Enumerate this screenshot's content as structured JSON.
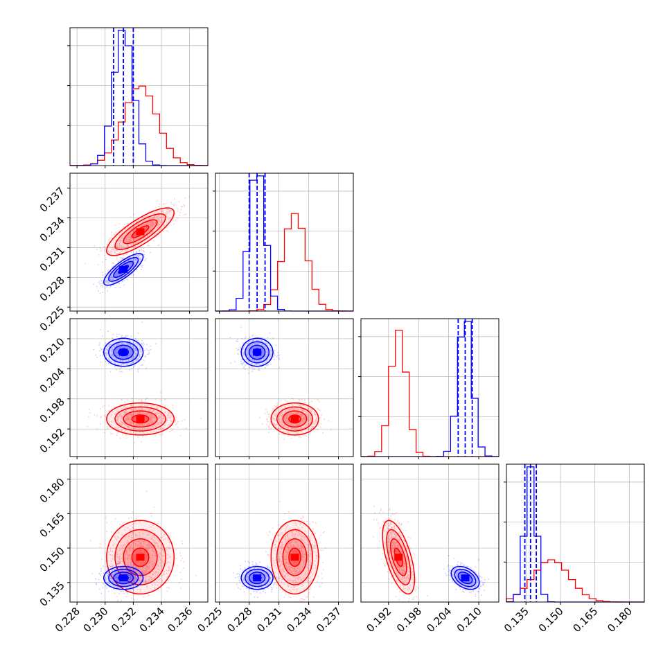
{
  "colors": {
    "red": "#ff0000",
    "blue": "#0000ff",
    "grid": "#b0b0b0",
    "axis": "#000000"
  },
  "chart_data": {
    "type": "corner",
    "title": "",
    "params": [
      {
        "range": [
          0.2275,
          0.2373
        ],
        "ticks": [
          0.228,
          0.23,
          0.232,
          0.234,
          0.236
        ],
        "tick_labels": [
          "0.228",
          "0.230",
          "0.232",
          "0.234",
          "0.236"
        ]
      },
      {
        "range": [
          0.2246,
          0.2385
        ],
        "ticks": [
          0.225,
          0.228,
          0.231,
          0.234,
          0.237
        ],
        "tick_labels": [
          "0.225",
          "0.228",
          "0.231",
          "0.234",
          "0.237"
        ]
      },
      {
        "range": [
          0.1865,
          0.214
        ],
        "ticks": [
          0.192,
          0.198,
          0.204,
          0.21
        ],
        "tick_labels": [
          "0.192",
          "0.198",
          "0.204",
          "0.210"
        ]
      },
      {
        "range": [
          0.1265,
          0.1865
        ],
        "ticks": [
          0.135,
          0.15,
          0.165,
          0.18
        ],
        "tick_labels": [
          "0.135",
          "0.150",
          "0.165",
          "0.180"
        ]
      }
    ],
    "series": [
      {
        "color": "red",
        "mean": [
          0.2325,
          0.2326,
          0.194,
          0.146
        ],
        "sd": [
          0.0012,
          0.0012,
          0.0016,
          0.008
        ],
        "corr": [
          [
            0,
            1,
            0.8
          ],
          [
            0,
            2,
            0.0
          ],
          [
            0,
            3,
            0.0
          ],
          [
            1,
            2,
            0.0
          ],
          [
            1,
            3,
            0.0
          ],
          [
            2,
            3,
            -0.6
          ]
        ]
      },
      {
        "color": "blue",
        "mean": [
          0.2313,
          0.2288,
          0.2073,
          0.137
        ],
        "sd": [
          0.0007,
          0.0008,
          0.0014,
          0.0025
        ],
        "corr": [
          [
            0,
            1,
            0.8
          ],
          [
            0,
            2,
            0.0
          ],
          [
            0,
            3,
            0.0
          ],
          [
            1,
            2,
            0.0
          ],
          [
            1,
            3,
            0.0
          ],
          [
            2,
            3,
            -0.4
          ]
        ]
      }
    ],
    "quantiles_series": "blue",
    "quantiles": [
      0.16,
      0.5,
      0.84
    ],
    "grid": true
  }
}
